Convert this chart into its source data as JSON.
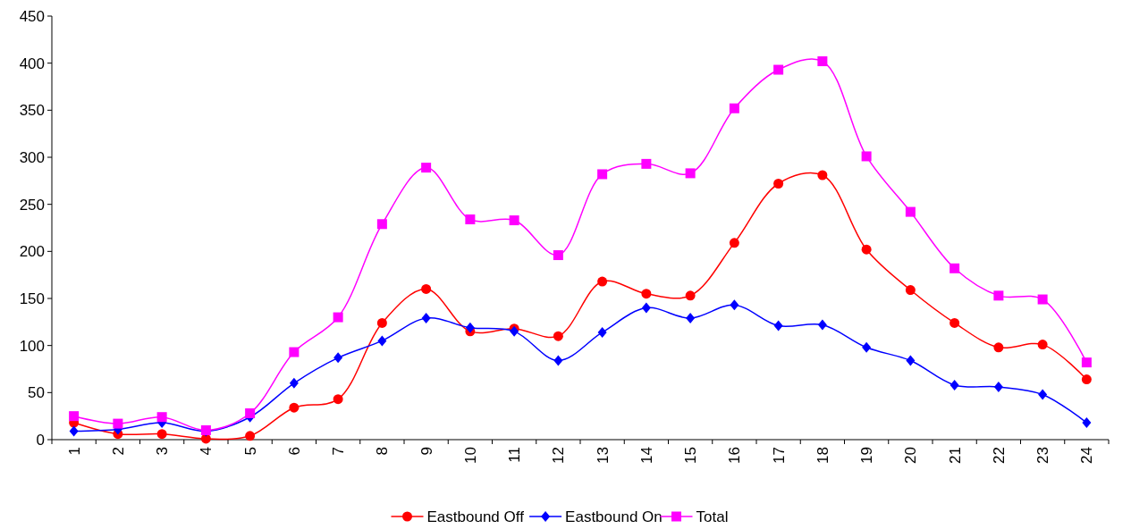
{
  "chart_data": {
    "type": "line",
    "categories": [
      "1",
      "2",
      "3",
      "4",
      "5",
      "6",
      "7",
      "8",
      "9",
      "10",
      "11",
      "12",
      "13",
      "14",
      "15",
      "16",
      "17",
      "18",
      "19",
      "20",
      "21",
      "22",
      "23",
      "24"
    ],
    "series": [
      {
        "name": "Eastbound Off",
        "color": "#ff0000",
        "marker": "circle",
        "values": [
          18,
          6,
          6,
          1,
          4,
          34,
          43,
          124,
          160,
          115,
          118,
          110,
          168,
          155,
          153,
          209,
          272,
          281,
          202,
          159,
          124,
          98,
          101,
          64
        ]
      },
      {
        "name": "Eastbound On",
        "color": "#0000ff",
        "marker": "diamond",
        "values": [
          9,
          11,
          18,
          9,
          24,
          60,
          87,
          105,
          129,
          119,
          115,
          84,
          114,
          140,
          129,
          143,
          121,
          122,
          98,
          84,
          58,
          56,
          48,
          18
        ]
      },
      {
        "name": "Total",
        "color": "#ff00ff",
        "marker": "square",
        "values": [
          25,
          17,
          24,
          10,
          28,
          93,
          130,
          229,
          289,
          234,
          233,
          196,
          282,
          293,
          283,
          352,
          393,
          402,
          301,
          242,
          182,
          153,
          149,
          82
        ]
      }
    ],
    "ylim": [
      0,
      450
    ],
    "yticks": [
      0,
      50,
      100,
      150,
      200,
      250,
      300,
      350,
      400,
      450
    ],
    "grid": false,
    "legend": "bottom"
  }
}
